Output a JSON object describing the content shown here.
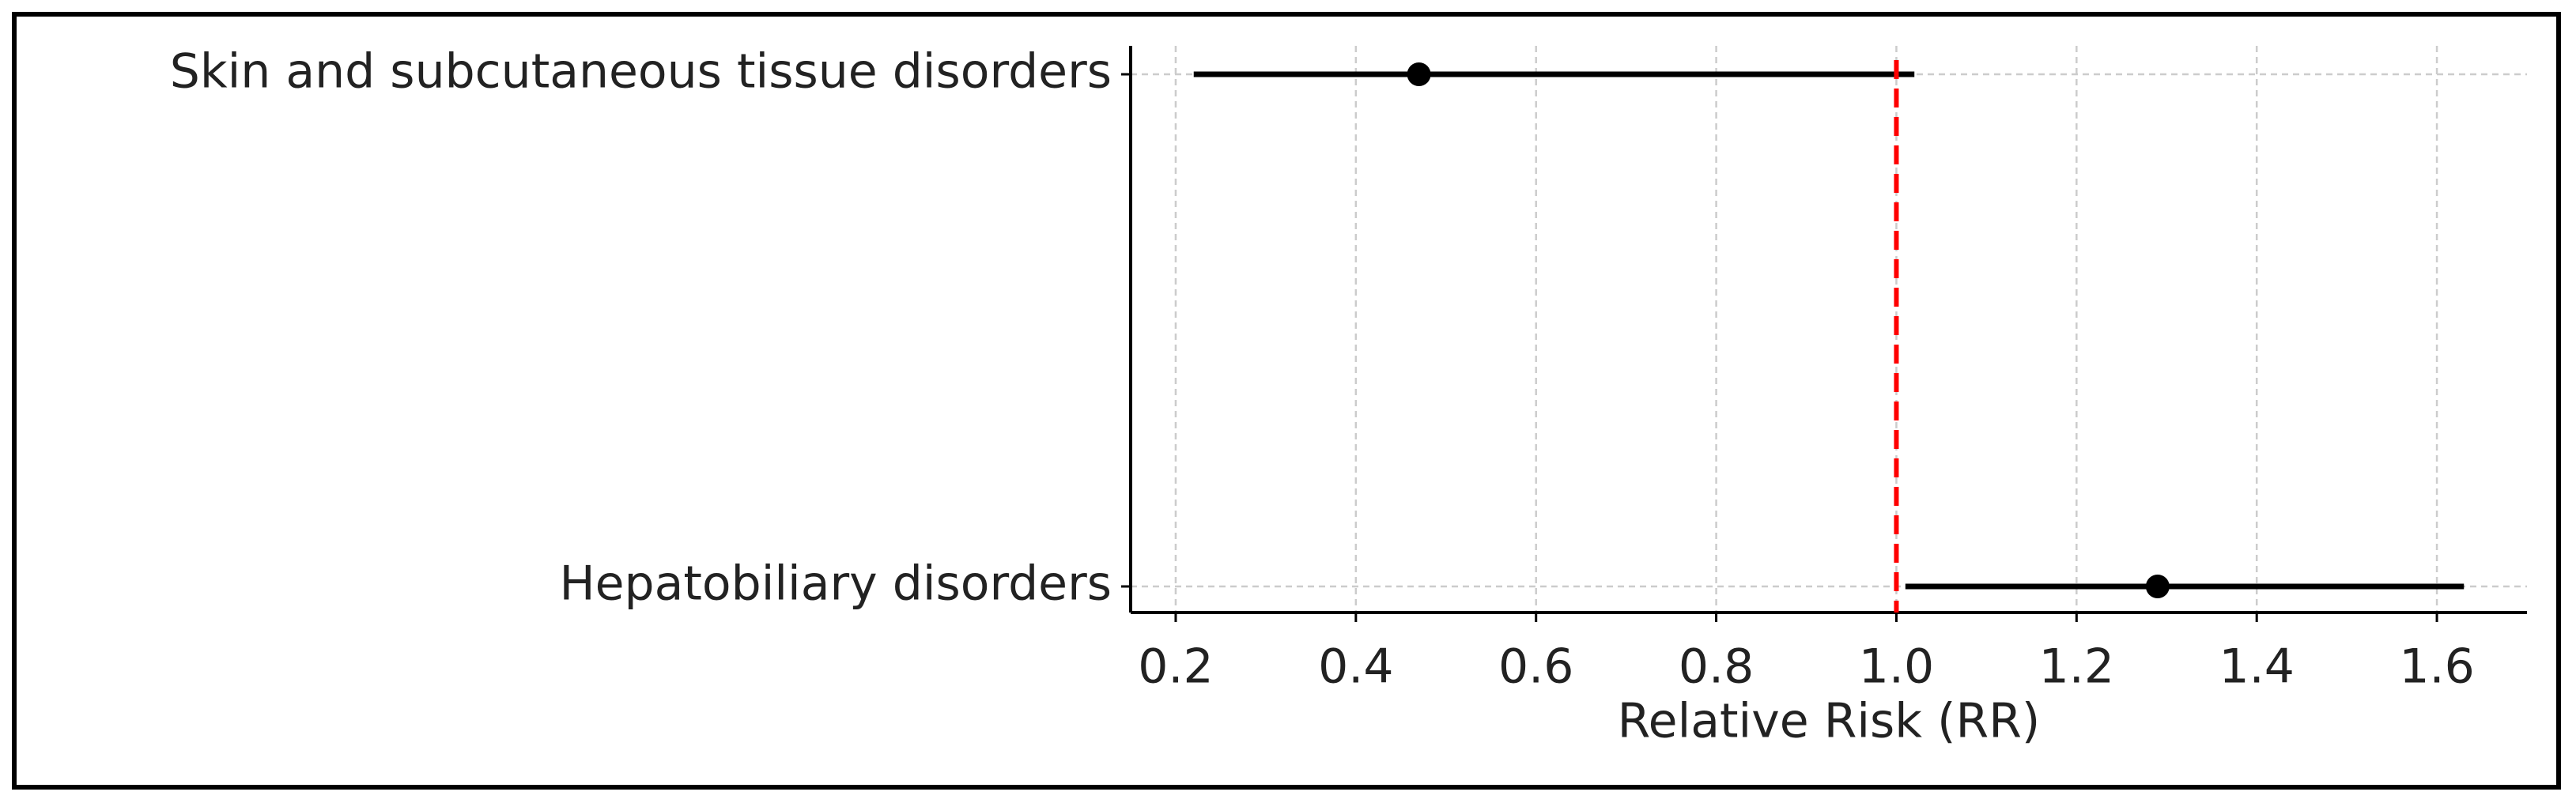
{
  "chart_data": {
    "type": "forest",
    "categories": [
      "Skin and subcutaneous tissue disorders",
      "Hepatobiliary disorders"
    ],
    "values": [
      0.47,
      1.29
    ],
    "ci_lower": [
      0.22,
      1.01
    ],
    "ci_upper": [
      1.02,
      1.63
    ],
    "color": "#000000",
    "reference_line": 1.0,
    "reference_color": "#ff0000",
    "x_label": "Relative Risk (RR)",
    "xlim": [
      0.15,
      1.7
    ],
    "xticks": [
      0.2,
      0.4,
      0.6,
      0.8,
      {
        "value": 1.0,
        "label": "1.0"
      },
      1.2,
      1.4,
      1.6
    ],
    "grid": true
  }
}
